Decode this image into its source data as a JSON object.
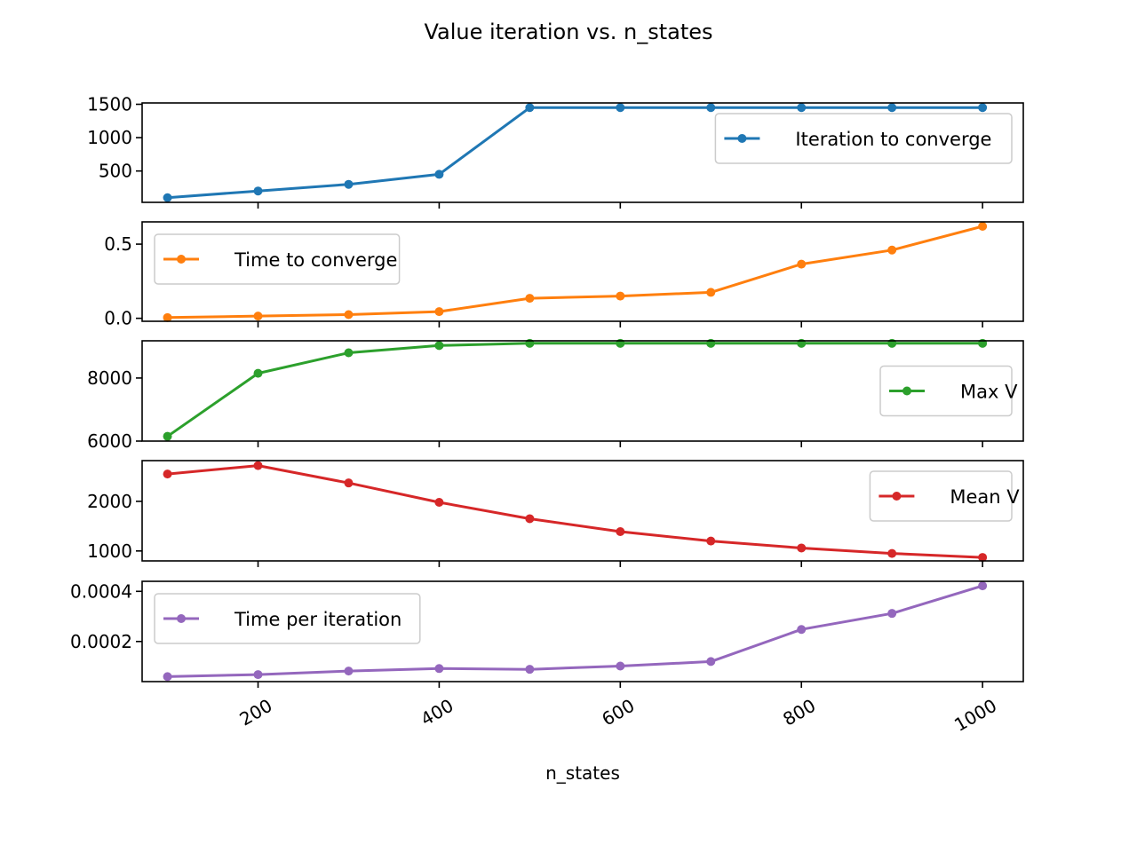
{
  "figure": {
    "title": "Value iteration vs. n_states",
    "xlabel": "n_states"
  },
  "chart_data": {
    "type": "line",
    "x": [
      100,
      200,
      300,
      400,
      500,
      600,
      700,
      800,
      900,
      1000
    ],
    "xlim": [
      72,
      1045
    ],
    "xticks": [
      200,
      400,
      600,
      800,
      1000
    ],
    "xtick_labels": [
      "200",
      "400",
      "600",
      "800",
      "1000"
    ],
    "xlabel": "n_states",
    "title": "Value iteration vs. n_states",
    "shared_x": true,
    "grid": false,
    "panels": [
      {
        "name": "Iteration to converge",
        "color": "#1f77b4",
        "values": [
          100,
          200,
          300,
          450,
          1450,
          1450,
          1450,
          1450,
          1450,
          1450
        ],
        "ylim": [
          30,
          1520
        ],
        "yticks": [
          500,
          1000,
          1500
        ],
        "ytick_labels": [
          "500",
          "1000",
          "1500"
        ],
        "legend": "upper right"
      },
      {
        "name": "Time to converge",
        "color": "#ff7f0e",
        "values": [
          0.005,
          0.015,
          0.025,
          0.045,
          0.135,
          0.15,
          0.175,
          0.365,
          0.46,
          0.62
        ],
        "ylim": [
          -0.02,
          0.65
        ],
        "yticks": [
          0.0,
          0.5
        ],
        "ytick_labels": [
          "0.0",
          "0.5"
        ],
        "legend": "upper left"
      },
      {
        "name": "Max V",
        "color": "#2ca02c",
        "values": [
          6150,
          8150,
          8800,
          9030,
          9100,
          9100,
          9100,
          9100,
          9100,
          9100
        ],
        "ylim": [
          6000,
          9180
        ],
        "yticks": [
          6000,
          8000
        ],
        "ytick_labels": [
          "6000",
          "8000"
        ],
        "legend": "center right"
      },
      {
        "name": "Mean V",
        "color": "#d62728",
        "values": [
          2550,
          2720,
          2370,
          1980,
          1650,
          1390,
          1200,
          1060,
          950,
          870
        ],
        "ylim": [
          800,
          2820
        ],
        "yticks": [
          1000,
          2000
        ],
        "ytick_labels": [
          "1000",
          "2000"
        ],
        "legend": "upper right"
      },
      {
        "name": "Time per iteration",
        "color": "#9467bd",
        "values": [
          6e-05,
          6.8e-05,
          8.2e-05,
          9.2e-05,
          8.9e-05,
          0.000102,
          0.00012,
          0.000248,
          0.000312,
          0.000422
        ],
        "ylim": [
          4e-05,
          0.00044
        ],
        "yticks": [
          0.0002,
          0.0004
        ],
        "ytick_labels": [
          "0.0002",
          "0.0004"
        ],
        "legend": "upper left"
      }
    ]
  }
}
